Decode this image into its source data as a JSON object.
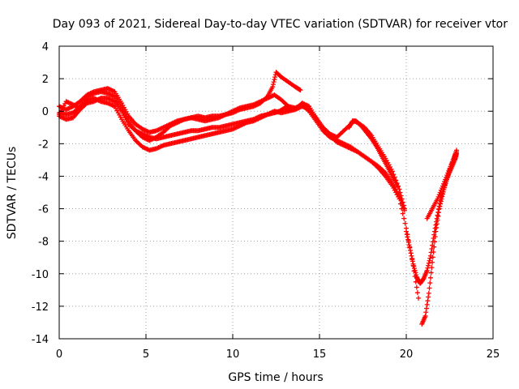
{
  "chart_data": {
    "type": "scatter",
    "title": "Day 093 of 2021, Sidereal Day-to-day VTEC variation (SDTVAR) for receiver vtor",
    "xlabel": "GPS time / hours",
    "ylabel": "SDTVAR / TECUs",
    "xlim": [
      0,
      25
    ],
    "ylim": [
      -14,
      4
    ],
    "xticks": [
      0,
      5,
      10,
      15,
      20,
      25
    ],
    "yticks": [
      -14,
      -12,
      -10,
      -8,
      -6,
      -4,
      -2,
      0,
      2,
      4
    ],
    "grid": true,
    "marker": "+",
    "color": "#ff0000",
    "series": [
      {
        "x": [
          0.0,
          0.4,
          0.8,
          1.2,
          1.6,
          2.0,
          2.4,
          2.8,
          3.2,
          3.6,
          4.0,
          4.4,
          4.8,
          5.2,
          5.6,
          6.0,
          6.4,
          6.8,
          7.2,
          7.6,
          8.0,
          8.4,
          8.8,
          9.2,
          9.6,
          10.0,
          10.4,
          10.8,
          11.2,
          11.6,
          12.0,
          12.4,
          12.8,
          13.2,
          13.6,
          14.0,
          14.4,
          14.8,
          15.2,
          15.6,
          16.0,
          16.4,
          16.8,
          17.2,
          17.6,
          18.0,
          18.4,
          18.8,
          19.2,
          19.6,
          19.9
        ],
        "y": [
          -0.2,
          0.6,
          0.4,
          0.2,
          0.9,
          1.1,
          1.2,
          1.1,
          0.9,
          0.2,
          -0.6,
          -1.2,
          -1.6,
          -1.8,
          -1.6,
          -1.3,
          -0.9,
          -0.7,
          -0.5,
          -0.4,
          -0.5,
          -0.6,
          -0.5,
          -0.4,
          -0.2,
          0.0,
          0.2,
          0.3,
          0.4,
          0.6,
          0.8,
          1.0,
          0.7,
          0.3,
          0.2,
          0.4,
          0.0,
          -0.6,
          -1.2,
          -1.6,
          -1.8,
          -2.0,
          -2.2,
          -2.5,
          -2.8,
          -3.1,
          -3.4,
          -3.8,
          -4.4,
          -5.2,
          -6.1
        ]
      },
      {
        "x": [
          0.0,
          0.4,
          0.8,
          1.2,
          1.6,
          2.0,
          2.4,
          2.8,
          3.2,
          3.6,
          4.0,
          4.4,
          4.8,
          5.2,
          5.6,
          6.0,
          6.4,
          6.8,
          7.2,
          7.6,
          8.0,
          8.4,
          8.8,
          9.2,
          9.6,
          10.0,
          10.4,
          10.8,
          11.2,
          11.6,
          12.0,
          12.4,
          12.7,
          13.0,
          13.3,
          13.7,
          14.0,
          14.4,
          14.8,
          15.2,
          15.6,
          16.0,
          16.4,
          16.8,
          17.2,
          17.6,
          18.0,
          18.4,
          18.8,
          19.2,
          19.6,
          20.0,
          20.4,
          20.7
        ],
        "y": [
          -0.1,
          -0.2,
          -0.1,
          0.3,
          0.7,
          0.8,
          0.6,
          0.5,
          0.3,
          -0.5,
          -1.2,
          -1.8,
          -2.2,
          -2.4,
          -2.3,
          -2.1,
          -2.0,
          -1.9,
          -1.8,
          -1.7,
          -1.6,
          -1.5,
          -1.4,
          -1.3,
          -1.2,
          -1.1,
          -0.9,
          -0.7,
          -0.6,
          -0.4,
          -0.2,
          -0.1,
          0.0,
          0.2,
          0.1,
          0.2,
          0.5,
          0.3,
          -0.4,
          -1.0,
          -1.5,
          -1.9,
          -2.1,
          -2.3,
          -2.5,
          -2.8,
          -3.1,
          -3.5,
          -4.0,
          -4.6,
          -5.4,
          -7.2,
          -9.5,
          -11.5
        ]
      },
      {
        "x": [
          0.0,
          0.4,
          0.8,
          1.2,
          1.6,
          2.0,
          2.4,
          2.8,
          3.2,
          3.6,
          4.0,
          4.4,
          4.8,
          5.2,
          5.6,
          6.0,
          6.4,
          6.8,
          7.2,
          7.6,
          8.0,
          8.4,
          8.8,
          9.2,
          9.6,
          10.0,
          10.4,
          10.8,
          11.2,
          11.6,
          12.0,
          12.3,
          12.5,
          12.8,
          13.2,
          13.6,
          13.9
        ],
        "y": [
          0.3,
          0.1,
          0.3,
          0.6,
          1.0,
          1.2,
          1.3,
          1.4,
          1.2,
          0.5,
          -0.3,
          -0.8,
          -1.1,
          -1.3,
          -1.2,
          -1.0,
          -0.8,
          -0.6,
          -0.5,
          -0.4,
          -0.3,
          -0.4,
          -0.3,
          -0.3,
          -0.2,
          -0.1,
          0.1,
          0.2,
          0.3,
          0.5,
          0.9,
          1.5,
          2.4,
          2.1,
          1.8,
          1.5,
          1.3
        ]
      },
      {
        "x": [
          0.0,
          0.4,
          0.8,
          1.2,
          1.6,
          2.0,
          2.4,
          2.8,
          3.2,
          3.6,
          4.0,
          4.4,
          4.8,
          5.2,
          5.6,
          6.0,
          6.4,
          6.8,
          7.2,
          7.6,
          8.0,
          8.4,
          8.8,
          9.2,
          9.6,
          10.0,
          10.4,
          10.8,
          11.2,
          11.6,
          12.0,
          12.4,
          12.8,
          13.2,
          13.6,
          14.0,
          14.4,
          14.8,
          15.2,
          15.6,
          16.0,
          16.4,
          16.8,
          17.0,
          17.2,
          17.6,
          18.0,
          18.4,
          18.8,
          19.2,
          19.6,
          19.9
        ],
        "y": [
          -0.3,
          -0.5,
          -0.4,
          0.1,
          0.5,
          0.6,
          0.8,
          0.8,
          0.6,
          0.0,
          -0.8,
          -1.2,
          -1.4,
          -1.6,
          -1.7,
          -1.6,
          -1.5,
          -1.4,
          -1.3,
          -1.2,
          -1.2,
          -1.1,
          -1.0,
          -1.0,
          -0.9,
          -0.8,
          -0.7,
          -0.6,
          -0.5,
          -0.3,
          -0.2,
          0.0,
          -0.1,
          0.0,
          0.1,
          0.3,
          0.1,
          -0.4,
          -1.0,
          -1.4,
          -1.6,
          -1.2,
          -0.8,
          -0.6,
          -0.7,
          -1.0,
          -1.5,
          -2.2,
          -2.9,
          -3.7,
          -4.8,
          -6.0
        ]
      },
      {
        "x": [
          20.0,
          20.2,
          20.4,
          20.6,
          20.8,
          21.0,
          21.2,
          21.4,
          21.6,
          21.8,
          22.0,
          22.2,
          22.4,
          22.6,
          22.8,
          22.9
        ],
        "y": [
          -7.4,
          -8.4,
          -9.4,
          -10.2,
          -10.6,
          -10.3,
          -9.8,
          -8.9,
          -7.6,
          -6.4,
          -5.3,
          -4.6,
          -4.0,
          -3.5,
          -3.0,
          -2.6
        ]
      },
      {
        "x": [
          20.9,
          21.1,
          21.3,
          21.5,
          21.7,
          21.9,
          22.1,
          22.3,
          22.5,
          22.7,
          22.9
        ],
        "y": [
          -13.1,
          -12.6,
          -11.2,
          -9.3,
          -7.4,
          -6.0,
          -5.1,
          -4.3,
          -3.6,
          -3.0,
          -2.5
        ]
      },
      {
        "x": [
          21.2,
          21.5,
          21.8,
          22.1,
          22.4,
          22.7,
          22.9
        ],
        "y": [
          -6.6,
          -6.0,
          -5.4,
          -4.6,
          -3.8,
          -3.0,
          -2.4
        ]
      },
      {
        "x": [
          16.7,
          16.9,
          17.1,
          17.4,
          17.7,
          18.0,
          18.3,
          18.6,
          18.9,
          19.2,
          19.5
        ],
        "y": [
          -1.0,
          -0.6,
          -0.6,
          -0.9,
          -1.3,
          -1.7,
          -2.2,
          -2.8,
          -3.4,
          -4.0,
          -4.6
        ]
      }
    ]
  }
}
